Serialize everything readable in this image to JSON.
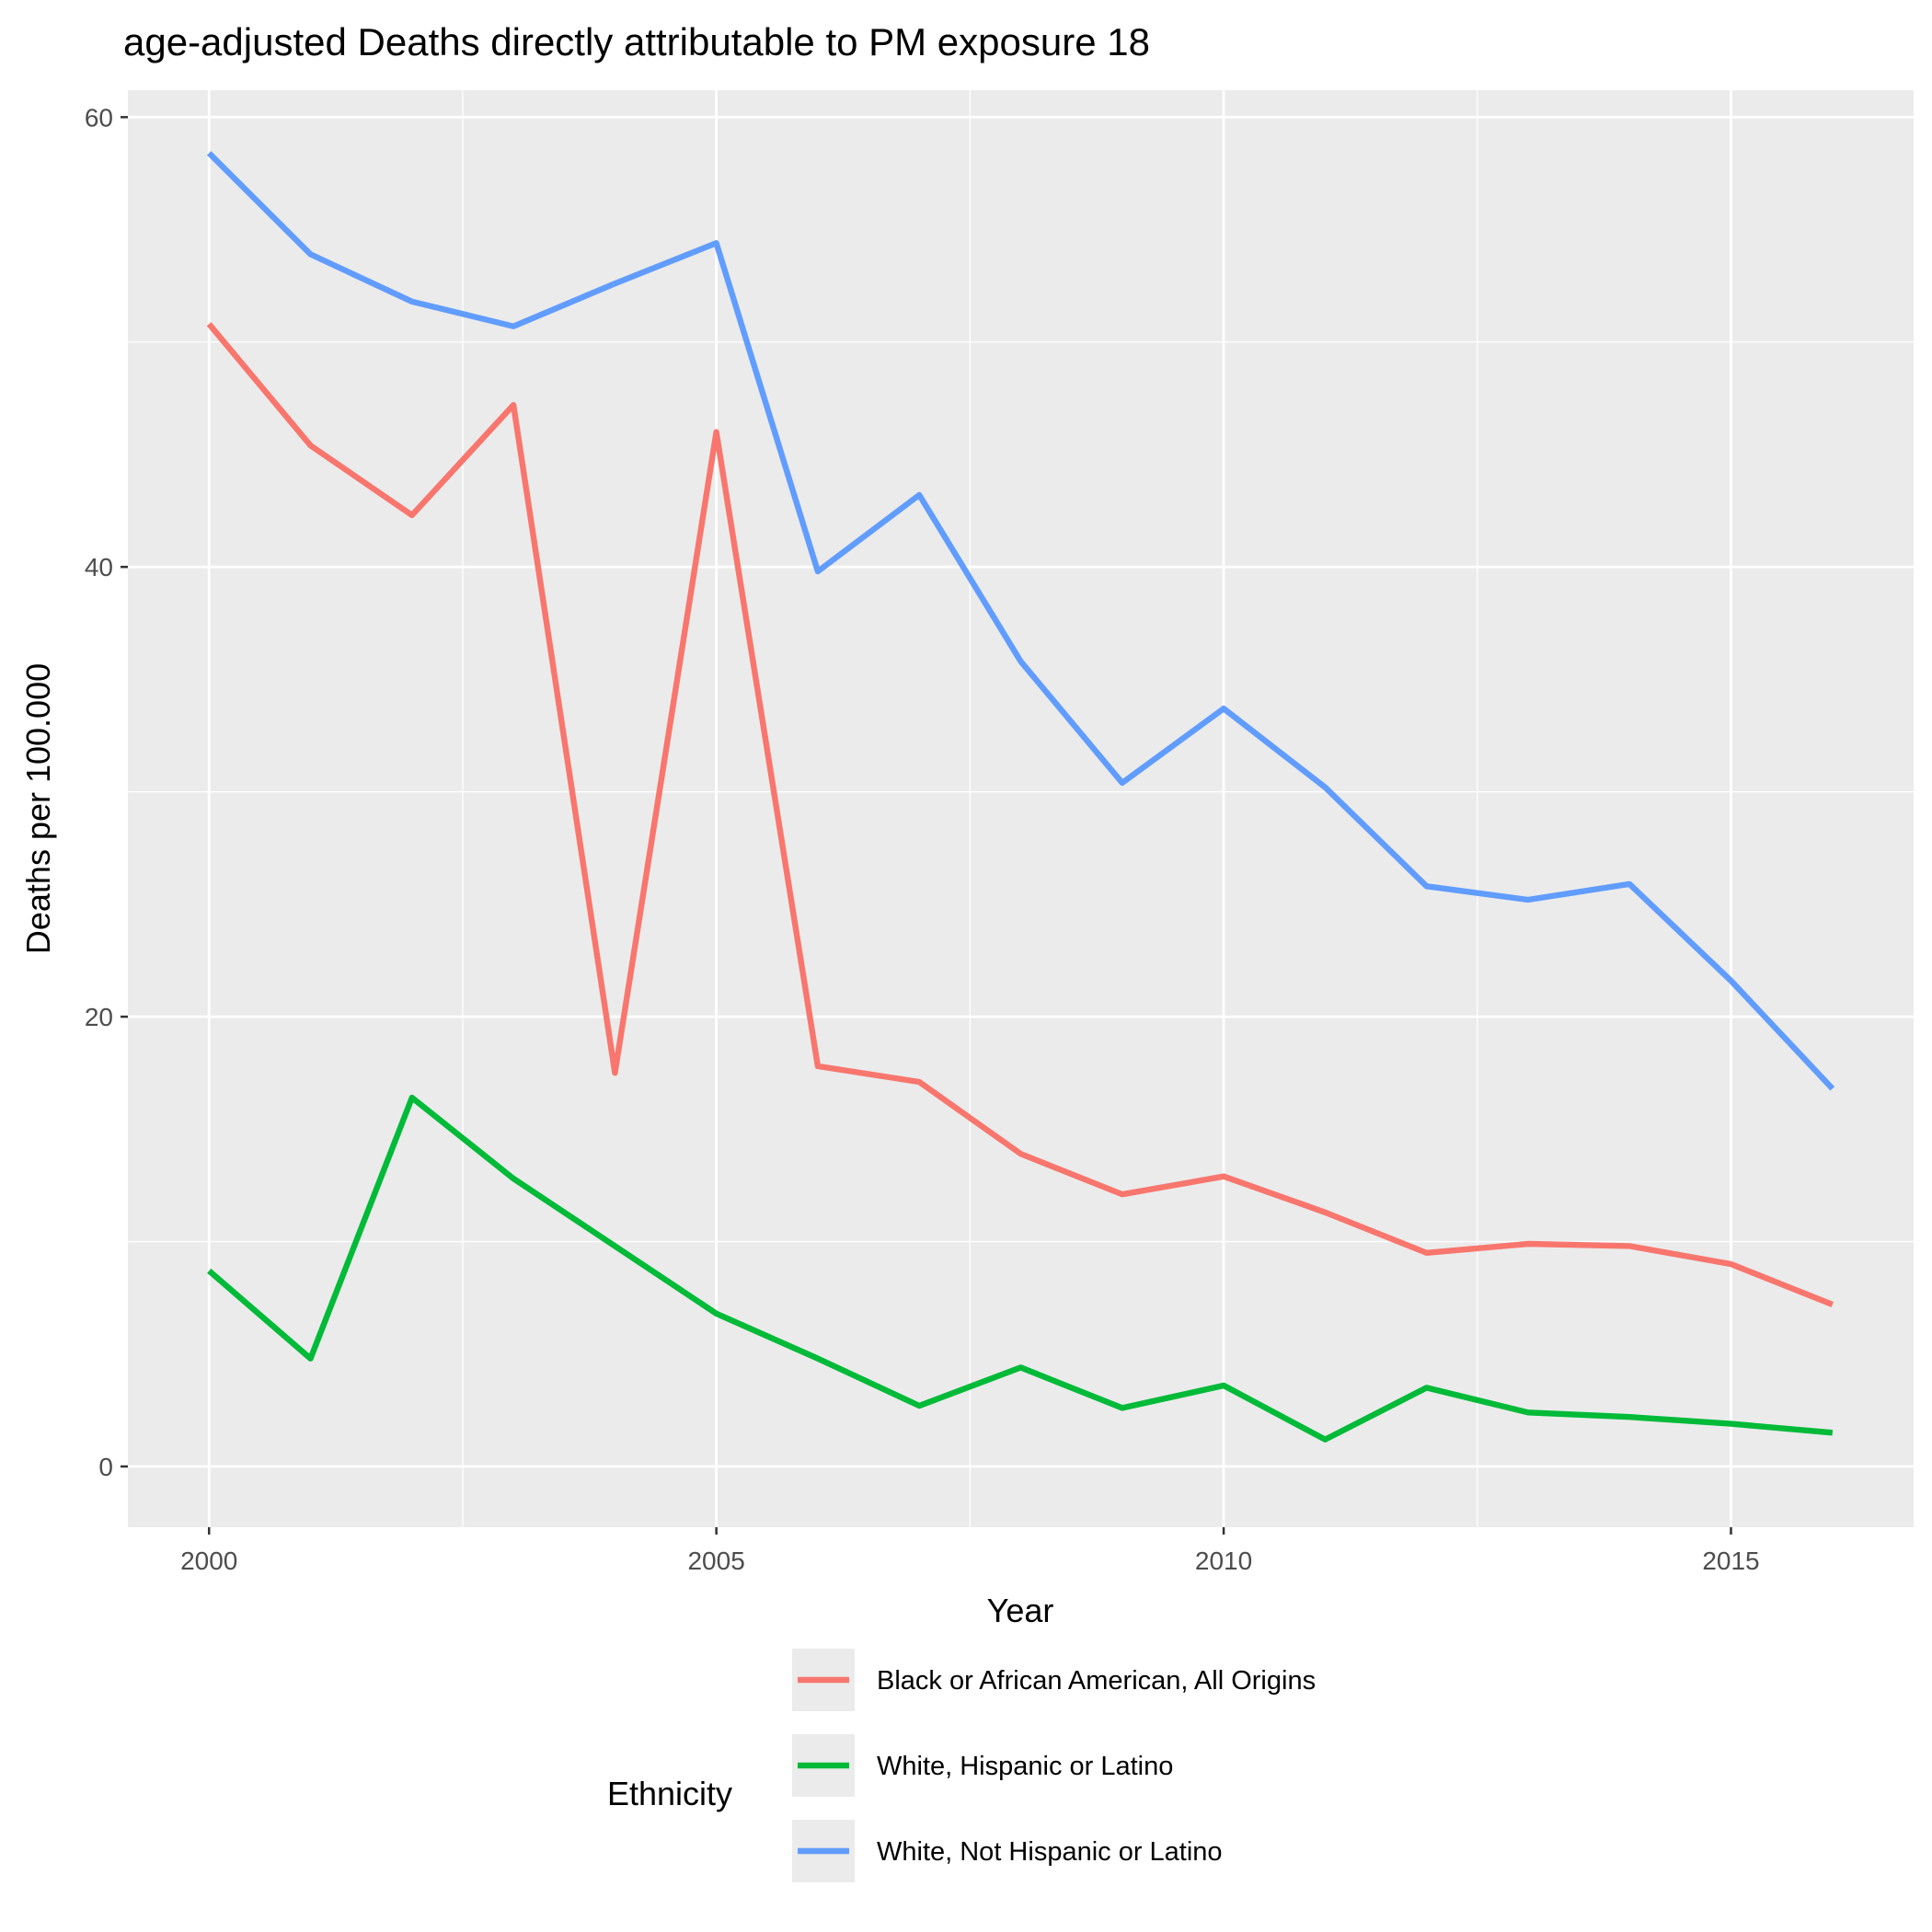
{
  "chart_data": {
    "type": "line",
    "title": "age-adjusted Deaths directly attributable to PM exposure 18",
    "xlabel": "Year",
    "ylabel": "Deaths per 100.000",
    "xlim": [
      1999.2,
      2016.8
    ],
    "ylim": [
      -2.7,
      61.2
    ],
    "x_ticks": [
      2000,
      2005,
      2010,
      2015
    ],
    "y_ticks": [
      0,
      20,
      40,
      60
    ],
    "grid": true,
    "legend_position": "bottom",
    "legend_title": "Ethnicity",
    "x": [
      2000,
      2001,
      2002,
      2003,
      2004,
      2005,
      2006,
      2007,
      2008,
      2009,
      2010,
      2011,
      2012,
      2013,
      2014,
      2015,
      2016
    ],
    "series": [
      {
        "name": "Black or African American, All Origins",
        "color": "#F8766D",
        "values": [
          50.8,
          45.4,
          42.3,
          47.2,
          17.5,
          46.0,
          17.8,
          17.1,
          13.9,
          12.1,
          12.9,
          11.3,
          9.5,
          9.9,
          9.8,
          9.0,
          7.2
        ]
      },
      {
        "name": "White, Hispanic or Latino",
        "color": "#00BA38",
        "values": [
          8.7,
          4.8,
          16.4,
          12.8,
          9.8,
          6.8,
          4.8,
          2.7,
          4.4,
          2.6,
          3.6,
          1.2,
          3.5,
          2.4,
          2.2,
          1.9,
          1.5
        ]
      },
      {
        "name": "White, Not Hispanic or Latino",
        "color": "#619CFF",
        "values": [
          58.4,
          53.9,
          51.8,
          50.7,
          52.6,
          54.4,
          39.8,
          43.2,
          35.8,
          30.4,
          33.7,
          30.2,
          25.8,
          25.2,
          25.9,
          21.6,
          16.8
        ]
      }
    ]
  }
}
